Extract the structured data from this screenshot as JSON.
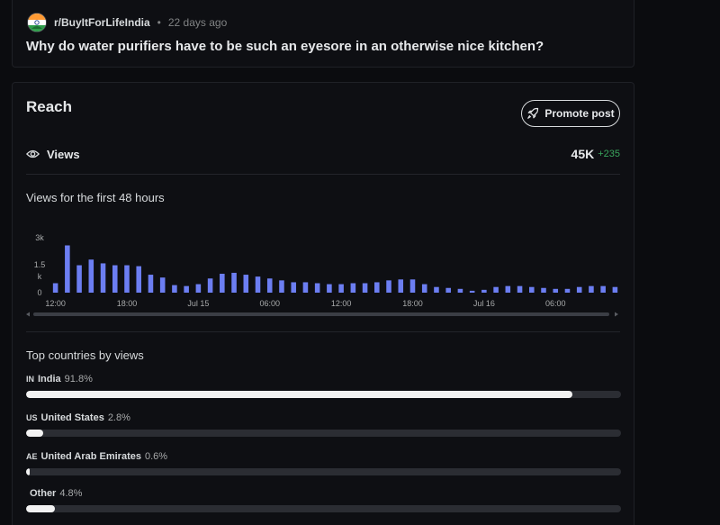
{
  "post": {
    "subreddit": "r/BuyItForLifeIndia",
    "age": "22 days ago",
    "separator": "•",
    "title": "Why do water purifiers have to be such an eyesore in an otherwise nice kitchen?"
  },
  "reach": {
    "title": "Reach",
    "promote_label": "Promote post",
    "views_label": "Views",
    "views_total": "45K",
    "views_delta": "+235",
    "chart_title": "Views for the first 48 hours"
  },
  "chart_data": {
    "type": "bar",
    "title": "Views for the first 48 hours",
    "y_ticks": [
      "3k",
      "1.5",
      "k",
      "0"
    ],
    "ylim": [
      0,
      3000
    ],
    "x_tick_labels": [
      "12:00",
      "18:00",
      "Jul 15",
      "06:00",
      "12:00",
      "18:00",
      "Jul 16",
      "06:00"
    ],
    "values": [
      500,
      2500,
      1450,
      1750,
      1550,
      1450,
      1450,
      1400,
      950,
      800,
      400,
      350,
      450,
      750,
      1000,
      1050,
      950,
      850,
      750,
      650,
      550,
      550,
      500,
      450,
      450,
      500,
      500,
      550,
      650,
      700,
      700,
      450,
      300,
      250,
      200,
      100,
      150,
      300,
      350,
      350,
      300,
      250,
      200,
      200,
      300,
      350,
      350,
      300
    ],
    "color": "#6c7ef2"
  },
  "countries": {
    "title": "Top countries by views",
    "items": [
      {
        "code": "IN",
        "name": "India",
        "pct_label": "91.8%",
        "fraction": 0.918
      },
      {
        "code": "US",
        "name": "United States",
        "pct_label": "2.8%",
        "fraction": 0.028
      },
      {
        "code": "AE",
        "name": "United Arab Emirates",
        "pct_label": "0.6%",
        "fraction": 0.006
      },
      {
        "code": "",
        "name": "Other",
        "pct_label": "4.8%",
        "fraction": 0.048
      }
    ]
  },
  "colors": {
    "accent_bar": "#6c7ef2",
    "delta_green": "#3aa55d",
    "progress_fill": "#f2f2f2",
    "progress_track": "#2b2d33"
  }
}
